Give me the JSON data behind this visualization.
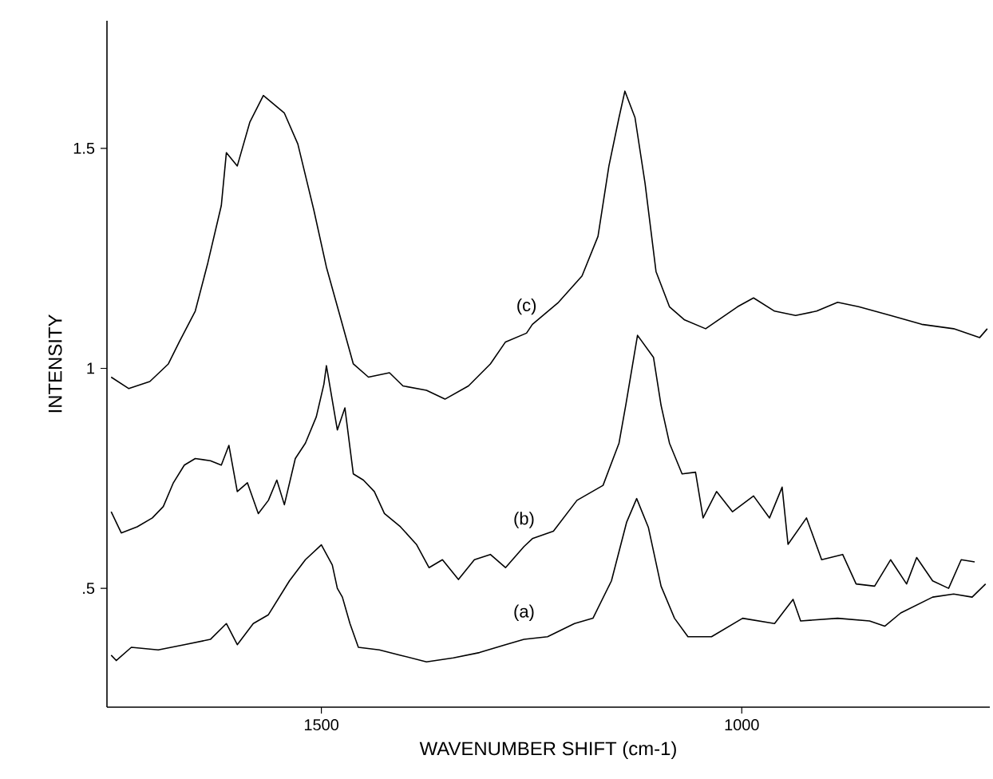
{
  "chart_data": {
    "type": "line",
    "xlabel": "WAVENUMBER SHIFT (cm-1)",
    "ylabel": "INTENSITY",
    "xlim": [
      1755,
      705
    ],
    "xticks": [
      1500,
      1000
    ],
    "ylim": [
      0.23,
      1.79
    ],
    "yticks": [
      {
        "value": 0.5,
        "label": ".5"
      },
      1,
      1.5
    ],
    "series": [
      {
        "name": "(a)",
        "color": "#000000",
        "x": [
          1750,
          1744,
          1726,
          1694,
          1663,
          1632,
          1613,
          1600,
          1581,
          1563,
          1538,
          1519,
          1500,
          1487,
          1481,
          1475,
          1466,
          1456,
          1431,
          1406,
          1375,
          1343,
          1312,
          1281,
          1259,
          1231,
          1199,
          1177,
          1155,
          1137,
          1125,
          1111,
          1096,
          1080,
          1064,
          1036,
          999,
          961,
          939,
          930,
          886,
          848,
          830,
          811,
          773,
          748,
          726,
          710
        ],
        "values": [
          0.348,
          0.336,
          0.366,
          0.36,
          0.372,
          0.384,
          0.42,
          0.372,
          0.42,
          0.44,
          0.517,
          0.565,
          0.599,
          0.553,
          0.5,
          0.48,
          0.42,
          0.366,
          0.36,
          0.348,
          0.333,
          0.342,
          0.354,
          0.372,
          0.384,
          0.39,
          0.42,
          0.432,
          0.517,
          0.65,
          0.704,
          0.638,
          0.505,
          0.432,
          0.39,
          0.39,
          0.432,
          0.42,
          0.475,
          0.426,
          0.432,
          0.426,
          0.414,
          0.444,
          0.48,
          0.487,
          0.48,
          0.51
        ]
      },
      {
        "name": "(b)",
        "color": "#000000",
        "x": [
          1750,
          1738,
          1719,
          1701,
          1688,
          1676,
          1663,
          1650,
          1632,
          1619,
          1610,
          1600,
          1588,
          1575,
          1563,
          1553,
          1544,
          1531,
          1519,
          1506,
          1497,
          1494,
          1481,
          1472,
          1462,
          1450,
          1437,
          1425,
          1406,
          1387,
          1372,
          1356,
          1337,
          1318,
          1299,
          1281,
          1259,
          1249,
          1224,
          1196,
          1165,
          1146,
          1138,
          1124,
          1105,
          1096,
          1086,
          1071,
          1055,
          1046,
          1030,
          1011,
          986,
          967,
          952,
          945,
          923,
          905,
          880,
          864,
          842,
          823,
          804,
          792,
          773,
          754,
          739,
          723
        ],
        "values": [
          0.674,
          0.626,
          0.64,
          0.66,
          0.686,
          0.74,
          0.78,
          0.795,
          0.79,
          0.78,
          0.825,
          0.72,
          0.74,
          0.67,
          0.7,
          0.746,
          0.69,
          0.795,
          0.83,
          0.89,
          0.964,
          1.006,
          0.86,
          0.91,
          0.76,
          0.746,
          0.72,
          0.67,
          0.64,
          0.6,
          0.547,
          0.565,
          0.52,
          0.565,
          0.577,
          0.547,
          0.595,
          0.613,
          0.63,
          0.7,
          0.734,
          0.83,
          0.916,
          1.075,
          1.025,
          0.916,
          0.83,
          0.76,
          0.764,
          0.66,
          0.72,
          0.674,
          0.71,
          0.66,
          0.73,
          0.6,
          0.66,
          0.565,
          0.577,
          0.51,
          0.505,
          0.565,
          0.51,
          0.57,
          0.517,
          0.5,
          0.565,
          0.56
        ]
      },
      {
        "name": "(c)",
        "color": "#000000",
        "x": [
          1750,
          1729,
          1704,
          1682,
          1669,
          1650,
          1635,
          1619,
          1613,
          1600,
          1585,
          1569,
          1544,
          1528,
          1509,
          1494,
          1478,
          1462,
          1444,
          1419,
          1403,
          1375,
          1353,
          1325,
          1299,
          1281,
          1256,
          1249,
          1218,
          1190,
          1171,
          1158,
          1146,
          1139,
          1127,
          1115,
          1102,
          1086,
          1068,
          1043,
          1005,
          986,
          961,
          936,
          911,
          886,
          861,
          823,
          786,
          748,
          717,
          708
        ],
        "values": [
          0.98,
          0.954,
          0.97,
          1.01,
          1.06,
          1.13,
          1.24,
          1.37,
          1.49,
          1.46,
          1.56,
          1.62,
          1.58,
          1.51,
          1.36,
          1.23,
          1.12,
          1.01,
          0.98,
          0.99,
          0.96,
          0.95,
          0.93,
          0.96,
          1.01,
          1.06,
          1.08,
          1.1,
          1.15,
          1.21,
          1.3,
          1.46,
          1.57,
          1.63,
          1.57,
          1.42,
          1.22,
          1.14,
          1.11,
          1.09,
          1.14,
          1.16,
          1.13,
          1.12,
          1.13,
          1.15,
          1.14,
          1.12,
          1.1,
          1.09,
          1.07,
          1.09
        ]
      }
    ]
  }
}
